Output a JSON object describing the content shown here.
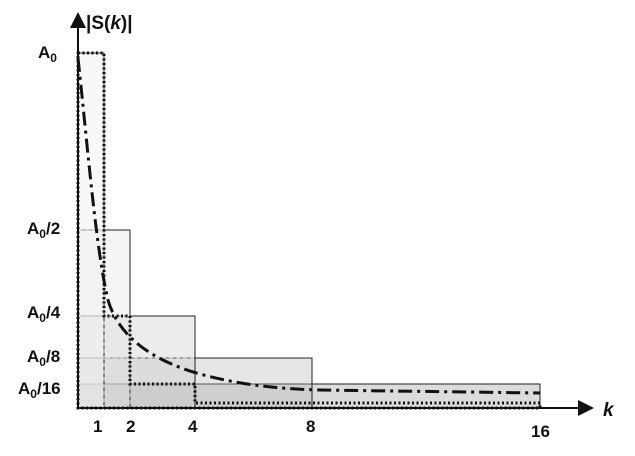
{
  "y_axis_label": {
    "prefix": "|S(",
    "var": "k",
    "suffix": ")|"
  },
  "x_axis_label": "k",
  "y_levels": [
    {
      "base": "A",
      "sub": "0",
      "rest": ""
    },
    {
      "base": "A",
      "sub": "0",
      "rest": "/2"
    },
    {
      "base": "A",
      "sub": "0",
      "rest": "/4"
    },
    {
      "base": "A",
      "sub": "0",
      "rest": "/8"
    },
    {
      "base": "A",
      "sub": "0",
      "rest": "/16"
    }
  ],
  "x_ticks": [
    "1",
    "2",
    "4",
    "8",
    "16"
  ],
  "diagram": {
    "bars": [
      {
        "from_k": 0,
        "to_k": 1,
        "level": 1
      },
      {
        "from_k": 0,
        "to_k": 2,
        "level": 0.5
      },
      {
        "from_k": 0,
        "to_k": 4,
        "level": 0.25
      },
      {
        "from_k": 0,
        "to_k": 8,
        "level": 0.125
      },
      {
        "from_k": 0,
        "to_k": 16,
        "level": 0.0625
      }
    ],
    "dotted_outline": "staircase",
    "curve": "dash-dot decay"
  },
  "colors": {
    "bar_fill": "#c8c8c8",
    "outline": "#111111"
  }
}
